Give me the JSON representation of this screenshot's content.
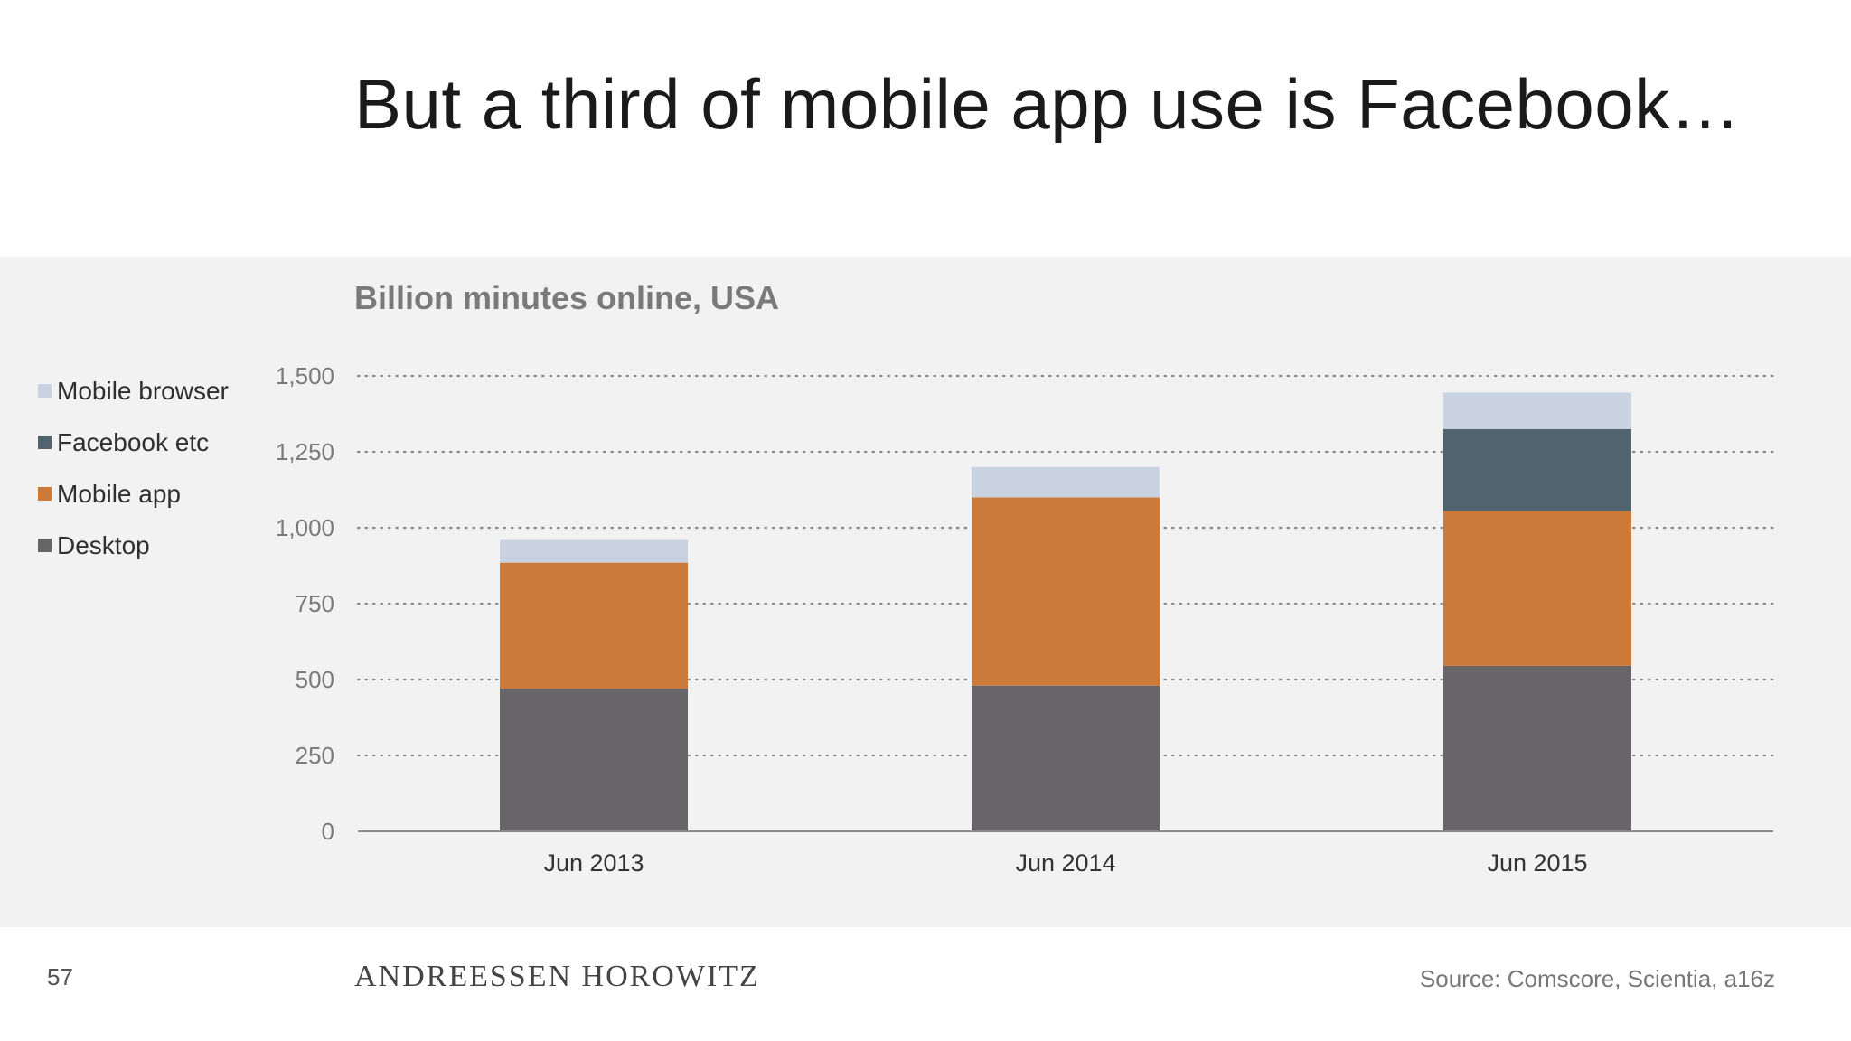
{
  "slide": {
    "title": "But a third of mobile app use is Facebook…",
    "page_number": "57",
    "brand": "ANDREESSEN HOROWITZ",
    "source": "Source: Comscore, Scientia, a16z"
  },
  "chart_data": {
    "type": "bar",
    "stacked": true,
    "title": "Billion minutes online, USA",
    "xlabel": "",
    "ylabel": "",
    "categories": [
      "Jun 2013",
      "Jun 2014",
      "Jun 2015"
    ],
    "series": [
      {
        "name": "Desktop",
        "color": "#676567",
        "values": [
          470,
          480,
          545
        ]
      },
      {
        "name": "Mobile app",
        "color": "#cc7a3a",
        "values": [
          415,
          620,
          510
        ]
      },
      {
        "name": "Facebook etc",
        "color": "#51646d",
        "values": [
          0,
          0,
          270
        ]
      },
      {
        "name": "Mobile browser",
        "color": "#c8d2e0",
        "values": [
          75,
          100,
          120
        ]
      }
    ],
    "legend_order": [
      "Mobile browser",
      "Facebook etc",
      "Mobile app",
      "Desktop"
    ],
    "ylim": [
      0,
      1500
    ],
    "yticks": [
      0,
      250,
      500,
      750,
      1000,
      1250,
      1500
    ],
    "ytick_labels": [
      "0",
      "250",
      "500",
      "750",
      "1,000",
      "1,250",
      "1,500"
    ],
    "grid": "dotted-horizontal",
    "legend_position": "left"
  }
}
